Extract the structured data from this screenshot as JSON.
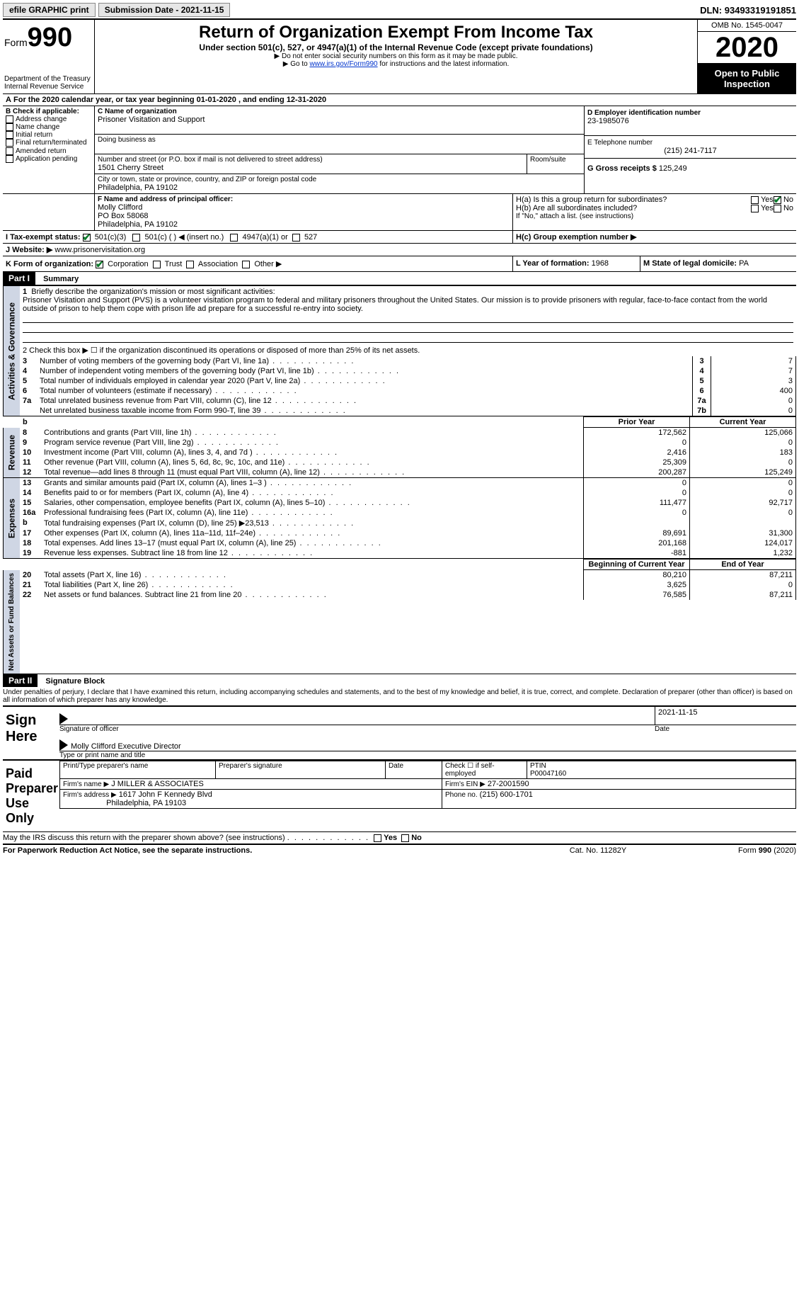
{
  "topbar": {
    "efile": "efile GRAPHIC print",
    "submission": "Submission Date - 2021-11-15",
    "dln_label": "DLN:",
    "dln": "93493319191851"
  },
  "header": {
    "form_label": "Form",
    "form_number": "990",
    "dept1": "Department of the Treasury",
    "dept2": "Internal Revenue Service",
    "title": "Return of Organization Exempt From Income Tax",
    "subtitle": "Under section 501(c), 527, or 4947(a)(1) of the Internal Revenue Code (except private foundations)",
    "note1": "▶ Do not enter social security numbers on this form as it may be made public.",
    "note2_a": "▶ Go to ",
    "note2_link": "www.irs.gov/Form990",
    "note2_b": " for instructions and the latest information.",
    "omb": "OMB No. 1545-0047",
    "year": "2020",
    "open1": "Open to Public",
    "open2": "Inspection"
  },
  "periodA": {
    "prefix": "A",
    "text": "For the 2020 calendar year, or tax year beginning ",
    "begin": "01-01-2020",
    "mid": " , and ending ",
    "end": "12-31-2020"
  },
  "boxB": {
    "title": "B Check if applicable:",
    "addr": "Address change",
    "name": "Name change",
    "initial": "Initial return",
    "final": "Final return/terminated",
    "amended": "Amended return",
    "app": "Application pending"
  },
  "boxC": {
    "label": "C Name of organization",
    "org": "Prisoner Visitation and Support",
    "dba_label": "Doing business as",
    "street_label": "Number and street (or P.O. box if mail is not delivered to street address)",
    "room_label": "Room/suite",
    "street": "1501 Cherry Street",
    "city_label": "City or town, state or province, country, and ZIP or foreign postal code",
    "city": "Philadelphia, PA  19102"
  },
  "boxD": {
    "label": "D Employer identification number",
    "value": "23-1985076"
  },
  "boxE": {
    "label": "E Telephone number",
    "value": "(215) 241-7117"
  },
  "boxG": {
    "label": "G Gross receipts $",
    "value": "125,249"
  },
  "boxF": {
    "label": "F Name and address of principal officer:",
    "name": "Molly Clifford",
    "addr1": "PO Box 58068",
    "addr2": "Philadelphia, PA  19102"
  },
  "boxH": {
    "ha": "H(a)  Is this a group return for subordinates?",
    "hb": "H(b)  Are all subordinates included?",
    "note": "If \"No,\" attach a list. (see instructions)",
    "hc": "H(c)  Group exemption number ▶",
    "yes": "Yes",
    "no": "No"
  },
  "boxI": {
    "label": "I  Tax-exempt status:",
    "c3": "501(c)(3)",
    "c": "501(c) (  ) ◀ (insert no.)",
    "a1": "4947(a)(1) or",
    "s527": "527"
  },
  "boxJ": {
    "label": "J  Website: ▶",
    "value": " www.prisonervisitation.org"
  },
  "boxK": {
    "label": "K Form of organization:",
    "corp": "Corporation",
    "trust": "Trust",
    "assoc": "Association",
    "other": "Other ▶"
  },
  "boxL": {
    "label": "L Year of formation:",
    "value": "1968"
  },
  "boxM": {
    "label": "M State of legal domicile:",
    "value": "PA"
  },
  "part1": {
    "tag": "Part I",
    "title": "Summary",
    "line1_label": "1",
    "line1_text": "Briefly describe the organization's mission or most significant activities:",
    "mission": "Prisoner Visitation and Support (PVS) is a volunteer visitation program to federal and military prisoners throughout the United States. Our mission is to provide prisoners with regular, face-to-face contact from the world outside of prison to help them cope with prison life ad prepare for a successful re-entry into society.",
    "line2": "2   Check this box ▶ ☐ if the organization discontinued its operations or disposed of more than 25% of its net assets.",
    "gov_rows": [
      {
        "n": "3",
        "t": "Number of voting members of the governing body (Part VI, line 1a)",
        "box": "3",
        "v": "7"
      },
      {
        "n": "4",
        "t": "Number of independent voting members of the governing body (Part VI, line 1b)",
        "box": "4",
        "v": "7"
      },
      {
        "n": "5",
        "t": "Total number of individuals employed in calendar year 2020 (Part V, line 2a)",
        "box": "5",
        "v": "3"
      },
      {
        "n": "6",
        "t": "Total number of volunteers (estimate if necessary)",
        "box": "6",
        "v": "400"
      },
      {
        "n": "7a",
        "t": "Total unrelated business revenue from Part VIII, column (C), line 12",
        "box": "7a",
        "v": "0"
      },
      {
        "n": "",
        "t": "Net unrelated business taxable income from Form 990-T, line 39",
        "box": "7b",
        "v": "0"
      }
    ],
    "hdr_b": "b",
    "hdr_prior": "Prior Year",
    "hdr_curr": "Current Year",
    "rev_rows": [
      {
        "n": "8",
        "t": "Contributions and grants (Part VIII, line 1h)",
        "p": "172,562",
        "c": "125,066"
      },
      {
        "n": "9",
        "t": "Program service revenue (Part VIII, line 2g)",
        "p": "0",
        "c": "0"
      },
      {
        "n": "10",
        "t": "Investment income (Part VIII, column (A), lines 3, 4, and 7d )",
        "p": "2,416",
        "c": "183"
      },
      {
        "n": "11",
        "t": "Other revenue (Part VIII, column (A), lines 5, 6d, 8c, 9c, 10c, and 11e)",
        "p": "25,309",
        "c": "0"
      },
      {
        "n": "12",
        "t": "Total revenue—add lines 8 through 11 (must equal Part VIII, column (A), line 12)",
        "p": "200,287",
        "c": "125,249"
      }
    ],
    "exp_rows": [
      {
        "n": "13",
        "t": "Grants and similar amounts paid (Part IX, column (A), lines 1–3 )",
        "p": "0",
        "c": "0"
      },
      {
        "n": "14",
        "t": "Benefits paid to or for members (Part IX, column (A), line 4)",
        "p": "0",
        "c": "0"
      },
      {
        "n": "15",
        "t": "Salaries, other compensation, employee benefits (Part IX, column (A), lines 5–10)",
        "p": "111,477",
        "c": "92,717"
      },
      {
        "n": "16a",
        "t": "Professional fundraising fees (Part IX, column (A), line 11e)",
        "p": "0",
        "c": "0"
      },
      {
        "n": "b",
        "t": "Total fundraising expenses (Part IX, column (D), line 25) ▶23,513",
        "p": "",
        "c": ""
      },
      {
        "n": "17",
        "t": "Other expenses (Part IX, column (A), lines 11a–11d, 11f–24e)",
        "p": "89,691",
        "c": "31,300"
      },
      {
        "n": "18",
        "t": "Total expenses. Add lines 13–17 (must equal Part IX, column (A), line 25)",
        "p": "201,168",
        "c": "124,017"
      },
      {
        "n": "19",
        "t": "Revenue less expenses. Subtract line 18 from line 12",
        "p": "-881",
        "c": "1,232"
      }
    ],
    "hdr_begin": "Beginning of Current Year",
    "hdr_end": "End of Year",
    "net_rows": [
      {
        "n": "20",
        "t": "Total assets (Part X, line 16)",
        "p": "80,210",
        "c": "87,211"
      },
      {
        "n": "21",
        "t": "Total liabilities (Part X, line 26)",
        "p": "3,625",
        "c": "0"
      },
      {
        "n": "22",
        "t": "Net assets or fund balances. Subtract line 21 from line 20",
        "p": "76,585",
        "c": "87,211"
      }
    ],
    "tabs": {
      "ag": "Activities & Governance",
      "rev": "Revenue",
      "exp": "Expenses",
      "net": "Net Assets or Fund Balances"
    }
  },
  "part2": {
    "tag": "Part II",
    "title": "Signature Block",
    "decl": "Under penalties of perjury, I declare that I have examined this return, including accompanying schedules and statements, and to the best of my knowledge and belief, it is true, correct, and complete. Declaration of preparer (other than officer) is based on all information of which preparer has any knowledge.",
    "sign_here": "Sign Here",
    "sig_officer": "Signature of officer",
    "sig_date": "Date",
    "sig_date_val": "2021-11-15",
    "officer_name": "Molly Clifford  Executive Director",
    "officer_sub": "Type or print name and title",
    "paid": "Paid Preparer Use Only",
    "pp_name_label": "Print/Type preparer's name",
    "pp_sig_label": "Preparer's signature",
    "pp_date_label": "Date",
    "pp_se": "Check ☐ if self-employed",
    "pp_ptin_label": "PTIN",
    "pp_ptin": "P00047160",
    "firm_name_label": "Firm's name   ▶",
    "firm_name": "J MILLER & ASSOCIATES",
    "firm_ein_label": "Firm's EIN ▶",
    "firm_ein": "27-2001590",
    "firm_addr_label": "Firm's address ▶",
    "firm_addr1": "1617 John F Kennedy Blvd",
    "firm_addr2": "Philadelphia, PA  19103",
    "firm_phone_label": "Phone no.",
    "firm_phone": "(215) 600-1701",
    "discuss": "May the IRS discuss this return with the preparer shown above? (see instructions)",
    "yes": "Yes",
    "no": "No"
  },
  "footer": {
    "pra": "For Paperwork Reduction Act Notice, see the separate instructions.",
    "cat": "Cat. No. 11282Y",
    "form": "Form 990 (2020)"
  }
}
